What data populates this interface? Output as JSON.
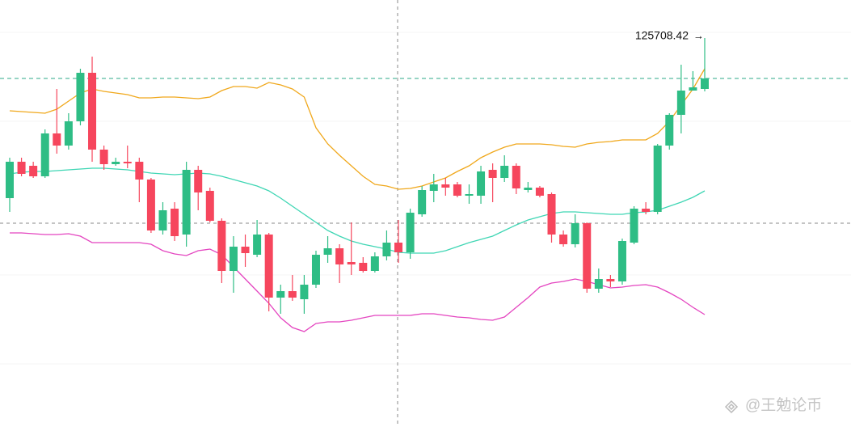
{
  "chart_data": {
    "type": "candlestick",
    "up_color": "#2ebd85",
    "down_color": "#f6465d",
    "ylim": [
      99253,
      128293
    ],
    "open": [
      114818,
      117293,
      117018,
      116303,
      119218,
      118393,
      120043,
      123343,
      118118,
      117128,
      117293,
      117293,
      116083,
      112618,
      114103,
      112343,
      116743,
      115313,
      113278,
      109868,
      111518,
      110968,
      112343,
      108053,
      108493,
      107943,
      108933,
      110968,
      111408,
      110473,
      110418,
      109868,
      110858,
      111793,
      111133,
      113718,
      115313,
      115753,
      115753,
      114983,
      114983,
      116743,
      116193,
      117018,
      115368,
      115533,
      115093,
      112343,
      111683,
      113113,
      108658,
      109318,
      109153,
      111793,
      114103,
      113883,
      118393,
      120483,
      122133,
      122243
    ],
    "high": [
      117568,
      117568,
      117293,
      119493,
      122243,
      120593,
      123618,
      124443,
      118393,
      117568,
      118393,
      117568,
      116193,
      114543,
      114543,
      117293,
      117018,
      115533,
      113443,
      112233,
      112343,
      113333,
      112453,
      108933,
      109593,
      109593,
      111243,
      112233,
      111683,
      113168,
      110803,
      111133,
      112618,
      113333,
      114103,
      115643,
      116468,
      116193,
      115918,
      115753,
      117018,
      117183,
      117733,
      117183,
      115918,
      115643,
      115203,
      112618,
      113718,
      113168,
      110033,
      109593,
      112068,
      114268,
      114543,
      118503,
      120593,
      123893,
      123453,
      125708.42
    ],
    "low": [
      113883,
      116303,
      116193,
      116193,
      117843,
      118118,
      119768,
      117293,
      116743,
      117018,
      116853,
      114543,
      112453,
      112343,
      111903,
      111518,
      113993,
      113168,
      109043,
      108383,
      110143,
      110803,
      107118,
      106953,
      107833,
      106953,
      108713,
      110418,
      109043,
      109593,
      109758,
      109758,
      110583,
      110418,
      110693,
      113553,
      114543,
      114983,
      114873,
      114433,
      114433,
      114543,
      115918,
      115093,
      115203,
      114873,
      111793,
      111518,
      111463,
      108383,
      108383,
      108768,
      108933,
      111683,
      113718,
      113718,
      118118,
      119218,
      122133,
      122078
    ],
    "close": [
      117293,
      116468,
      116303,
      119218,
      118393,
      120043,
      123343,
      118118,
      117128,
      117293,
      117183,
      116083,
      112618,
      113993,
      112233,
      116743,
      115203,
      113278,
      109868,
      111518,
      111078,
      112343,
      108053,
      108493,
      108053,
      108933,
      110968,
      111408,
      110308,
      110308,
      109868,
      110858,
      111793,
      111133,
      113828,
      115368,
      115753,
      115533,
      114983,
      115093,
      116633,
      116193,
      117018,
      115478,
      115533,
      114983,
      112343,
      111683,
      113113,
      108658,
      109318,
      109153,
      111903,
      114103,
      113883,
      118393,
      120483,
      122133,
      122353,
      122958
    ],
    "bands": [
      {
        "color": "#f0a81c",
        "values": [
          120758,
          120703,
          120648,
          120593,
          120868,
          121418,
          121968,
          122243,
          122078,
          121968,
          121858,
          121638,
          121638,
          121693,
          121693,
          121638,
          121583,
          121693,
          122133,
          122408,
          122408,
          122298,
          122683,
          122518,
          122243,
          121693,
          119603,
          118503,
          117733,
          117018,
          116303,
          115753,
          115643,
          115423,
          115478,
          115643,
          115918,
          116193,
          116633,
          117018,
          117568,
          117953,
          118283,
          118503,
          118503,
          118503,
          118448,
          118338,
          118283,
          118503,
          118613,
          118668,
          118778,
          118778,
          118778,
          119218,
          120043,
          121143,
          122243,
          123618
        ]
      },
      {
        "color": "#3fd6b4",
        "values": [
          116468,
          116578,
          116633,
          116633,
          116688,
          116743,
          116798,
          116853,
          116853,
          116798,
          116743,
          116633,
          116523,
          116468,
          116413,
          116468,
          116523,
          116468,
          116303,
          116083,
          115863,
          115643,
          115313,
          114818,
          114268,
          113718,
          113168,
          112618,
          112233,
          111903,
          111683,
          111518,
          111353,
          111133,
          111078,
          111078,
          111078,
          111243,
          111518,
          111793,
          112013,
          112233,
          112618,
          112998,
          113333,
          113553,
          113773,
          113883,
          113883,
          113828,
          113773,
          113718,
          113718,
          113828,
          113883,
          113993,
          114268,
          114543,
          114873,
          115313
        ]
      },
      {
        "color": "#e445c0",
        "values": [
          112453,
          112453,
          112398,
          112343,
          112343,
          112398,
          112233,
          111793,
          111793,
          111793,
          111793,
          111793,
          111683,
          111243,
          111023,
          110913,
          111243,
          111353,
          110968,
          110143,
          109318,
          108493,
          107668,
          106678,
          106018,
          105743,
          106293,
          106403,
          106403,
          106513,
          106678,
          106843,
          106843,
          106843,
          106843,
          106953,
          106953,
          106843,
          106733,
          106678,
          106568,
          106513,
          106733,
          107393,
          108053,
          108768,
          109043,
          109153,
          109318,
          109153,
          108933,
          108713,
          108768,
          108878,
          108933,
          108768,
          108383,
          107943,
          107393,
          106898
        ]
      }
    ],
    "watermark": "@王勉论币"
  }
}
